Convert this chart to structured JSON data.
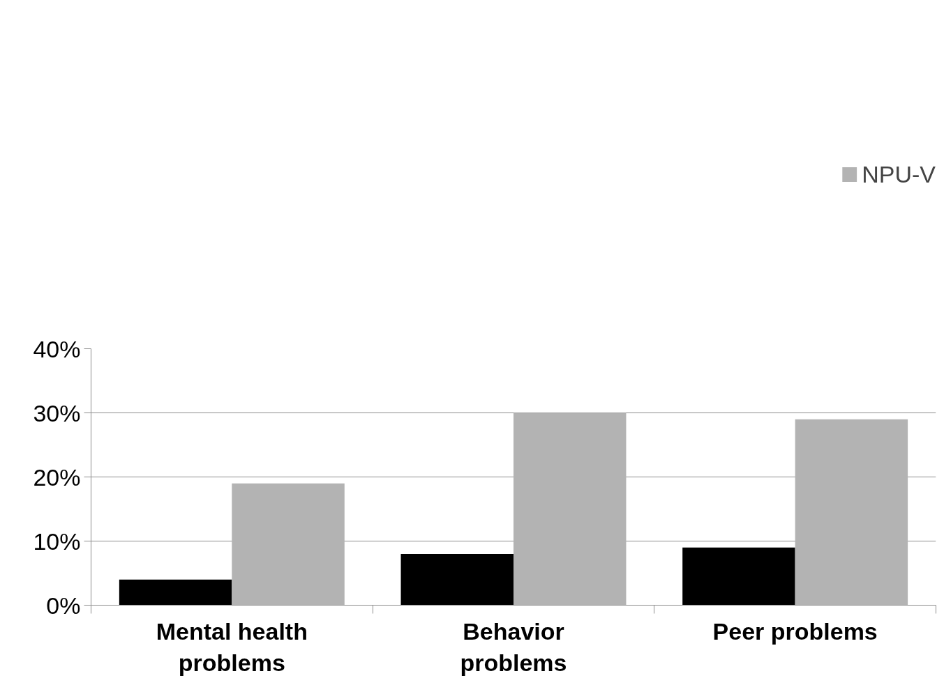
{
  "chart_data": {
    "type": "bar",
    "categories": [
      "Mental health problems",
      "Behavior problems",
      "Peer problems"
    ],
    "series": [
      {
        "color": "#000000",
        "values": [
          4,
          8,
          9
        ]
      },
      {
        "name": "NPU-V",
        "color": "#b3b3b3",
        "values": [
          19,
          30,
          29
        ]
      }
    ],
    "ylim": [
      0,
      40
    ],
    "yticks": [
      {
        "value": 0,
        "label": "0%"
      },
      {
        "value": 10,
        "label": "10%"
      },
      {
        "value": 20,
        "label": "20%"
      },
      {
        "value": 30,
        "label": "30%"
      },
      {
        "value": 40,
        "label": "40%"
      }
    ],
    "grid": "y",
    "legend": "top right"
  }
}
